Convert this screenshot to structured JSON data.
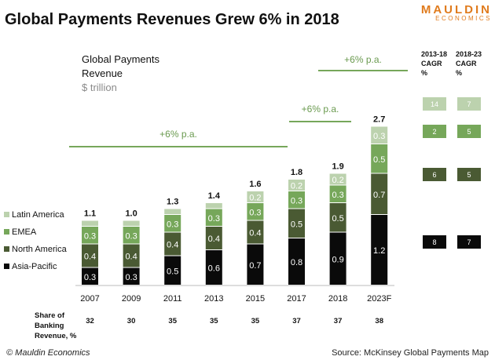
{
  "page": {
    "title": "Global Payments Revenues Grew 6% in 2018",
    "logo_main": "MAULDIN",
    "logo_sub": "ECONOMICS",
    "footer_left": "© Mauldin Economics",
    "footer_right": "Source: McKinsey Global Payments Map"
  },
  "chart_data": {
    "type": "bar",
    "stacked": true,
    "title": "Global Payments Revenue",
    "subtitle": "$ trillion",
    "categories": [
      "2007",
      "2009",
      "2011",
      "2013",
      "2015",
      "2017",
      "2018",
      "2023F"
    ],
    "series": [
      {
        "name": "Asia-Pacific",
        "color": "#0a0a0a",
        "values": [
          0.3,
          0.3,
          0.5,
          0.6,
          0.7,
          0.8,
          0.9,
          1.2
        ]
      },
      {
        "name": "North America",
        "color": "#4a5a33",
        "values": [
          0.4,
          0.4,
          0.4,
          0.4,
          0.4,
          0.5,
          0.5,
          0.7
        ]
      },
      {
        "name": "EMEA",
        "color": "#76a75a",
        "values": [
          0.3,
          0.3,
          0.3,
          0.3,
          0.3,
          0.3,
          0.3,
          0.5
        ]
      },
      {
        "name": "Latin America",
        "color": "#bcd2ae",
        "values": [
          0.1,
          0.1,
          0.1,
          0.1,
          0.2,
          0.2,
          0.2,
          0.3
        ]
      }
    ],
    "series_value_labels": [
      [
        "0.3",
        "0.3",
        "0.5",
        "0.6",
        "0.7",
        "0.8",
        "0.9",
        "1.2"
      ],
      [
        "0.4",
        "0.4",
        "0.4",
        "0.4",
        "0.4",
        "0.5",
        "0.5",
        "0.7"
      ],
      [
        "0.3",
        "0.3",
        "0.3",
        "0.3",
        "0.3",
        "0.3",
        "0.3",
        "0.5"
      ],
      [
        "",
        "",
        "",
        "",
        "0.2",
        "0.2",
        "0.2",
        "0.3"
      ]
    ],
    "totals": [
      "1.1",
      "1.0",
      "1.3",
      "1.4",
      "1.6",
      "1.8",
      "1.9",
      "2.7"
    ],
    "legend_order": [
      "Latin America",
      "EMEA",
      "North America",
      "Asia-Pacific"
    ],
    "share_label": [
      "Share of",
      "Banking",
      "Revenue, %"
    ],
    "share_values": [
      "32",
      "30",
      "35",
      "35",
      "35",
      "37",
      "37",
      "38"
    ],
    "growth_annotations": [
      {
        "label": "+6% p.a.",
        "from": "2007",
        "to": "2015"
      },
      {
        "label": "+6% p.a.",
        "from": "2017",
        "to": "2018"
      },
      {
        "label": "+6% p.a.",
        "from": "2018",
        "to": "2023F"
      }
    ],
    "cagr": {
      "headers": [
        [
          "2013-18",
          "CAGR",
          "%"
        ],
        [
          "2018-23",
          "CAGR",
          "%"
        ]
      ],
      "rows": [
        {
          "series": "Latin America",
          "values": [
            "14",
            "7"
          ]
        },
        {
          "series": "EMEA",
          "values": [
            "2",
            "5"
          ]
        },
        {
          "series": "North America",
          "values": [
            "6",
            "5"
          ]
        },
        {
          "series": "Asia-Pacific",
          "values": [
            "8",
            "7"
          ]
        }
      ]
    },
    "ylim": [
      0,
      2.7
    ],
    "grid": false,
    "legend_position": "left"
  }
}
